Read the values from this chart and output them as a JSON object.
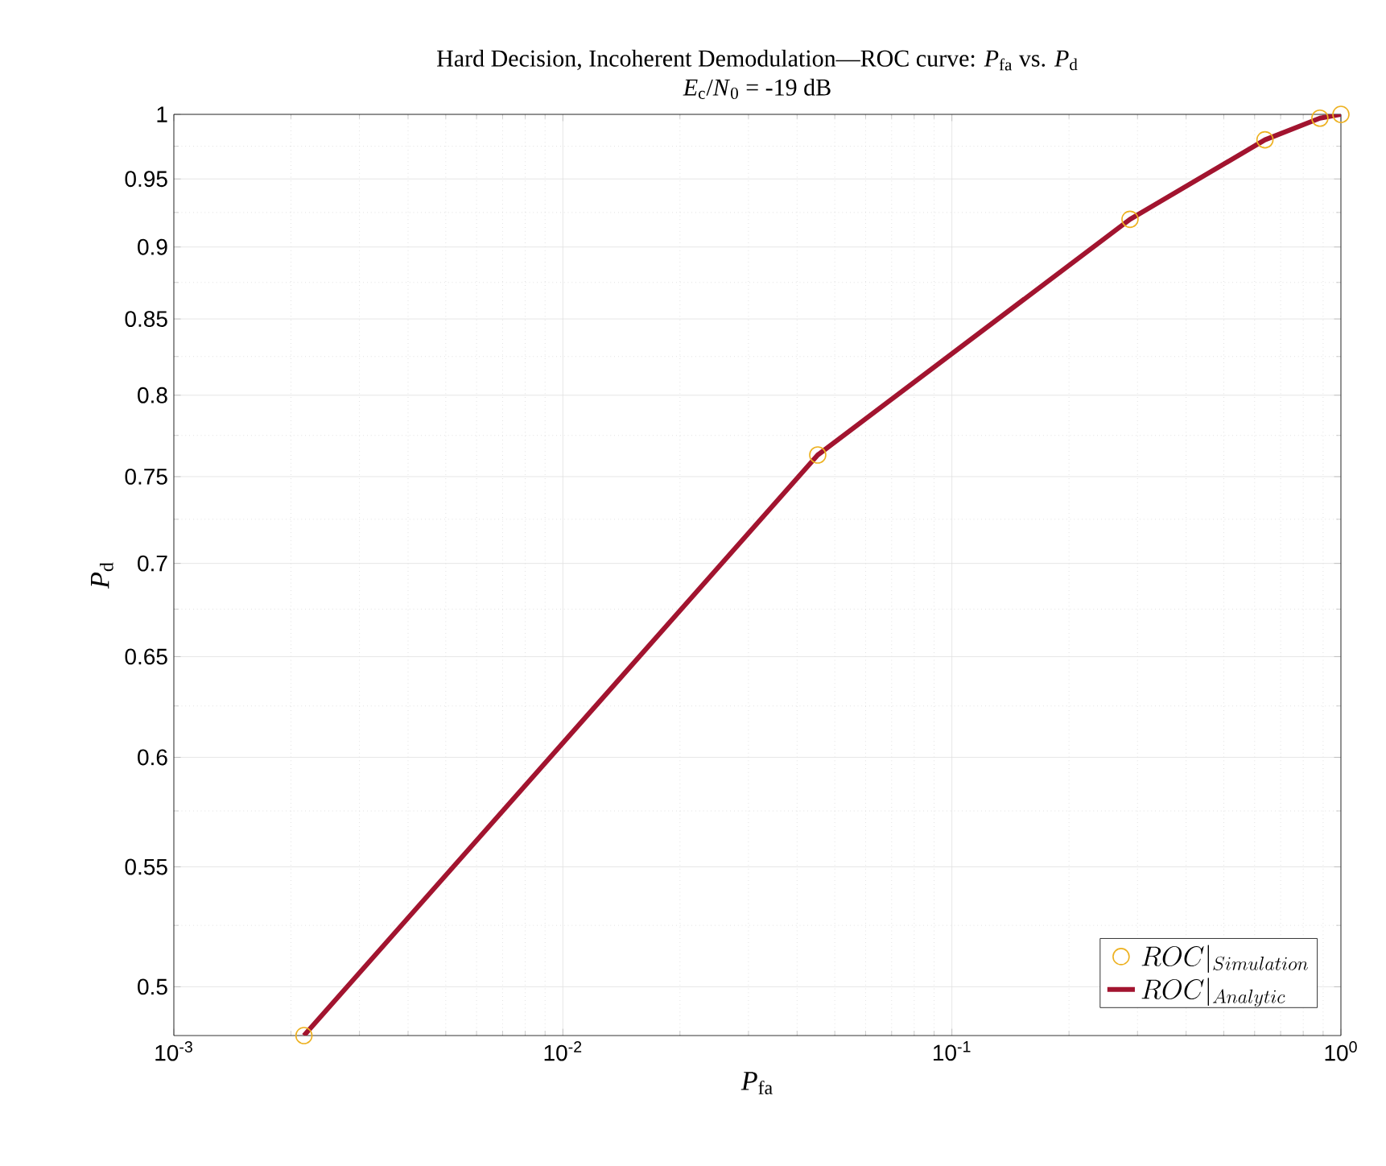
{
  "chart_data": {
    "type": "line",
    "title": "Hard Decision, Incoherent Demodulation—ROC curve: *P*$_{fa}$ vs. *P*$_{d}$",
    "subtitle": "*E*$_{c}$/*N*$_{0}$ = -19 dB",
    "xlabel": "*P*$_{fa}$",
    "ylabel": "*P*$_{d}$",
    "log": "xy",
    "grid": true,
    "legend": "bottom right",
    "xlim": [
      0.001,
      1
    ],
    "ylim": [
      0.481,
      1
    ],
    "xticks": [
      {
        "value": 0.001,
        "label": "10$^{-3}$"
      },
      {
        "value": 0.01,
        "label": "10$^{-2}$"
      },
      {
        "value": 0.1,
        "label": "10$^{-1}$"
      },
      {
        "value": 1,
        "label": "10$^{0}$"
      }
    ],
    "yticks": [
      0.5,
      0.55,
      0.6,
      0.65,
      0.7,
      0.75,
      0.8,
      0.85,
      0.9,
      0.95,
      1
    ],
    "series": [
      {
        "name": "ROC|_{Simulation}",
        "type": "scatter",
        "marker": "circle",
        "color": "#edb120",
        "x": [
          0.00216,
          0.0452,
          0.287,
          0.638,
          0.883,
          1
        ],
        "values": [
          0.481,
          0.763,
          0.92,
          0.98,
          0.997,
          1
        ]
      },
      {
        "name": "ROC|_{Analytic}",
        "marker": "none",
        "line_style": "solid",
        "color": "#a2142f",
        "x": [
          0.00216,
          0.0452,
          0.287,
          0.638,
          0.883,
          1
        ],
        "values": [
          0.481,
          0.763,
          0.92,
          0.98,
          0.997,
          1
        ]
      }
    ]
  }
}
